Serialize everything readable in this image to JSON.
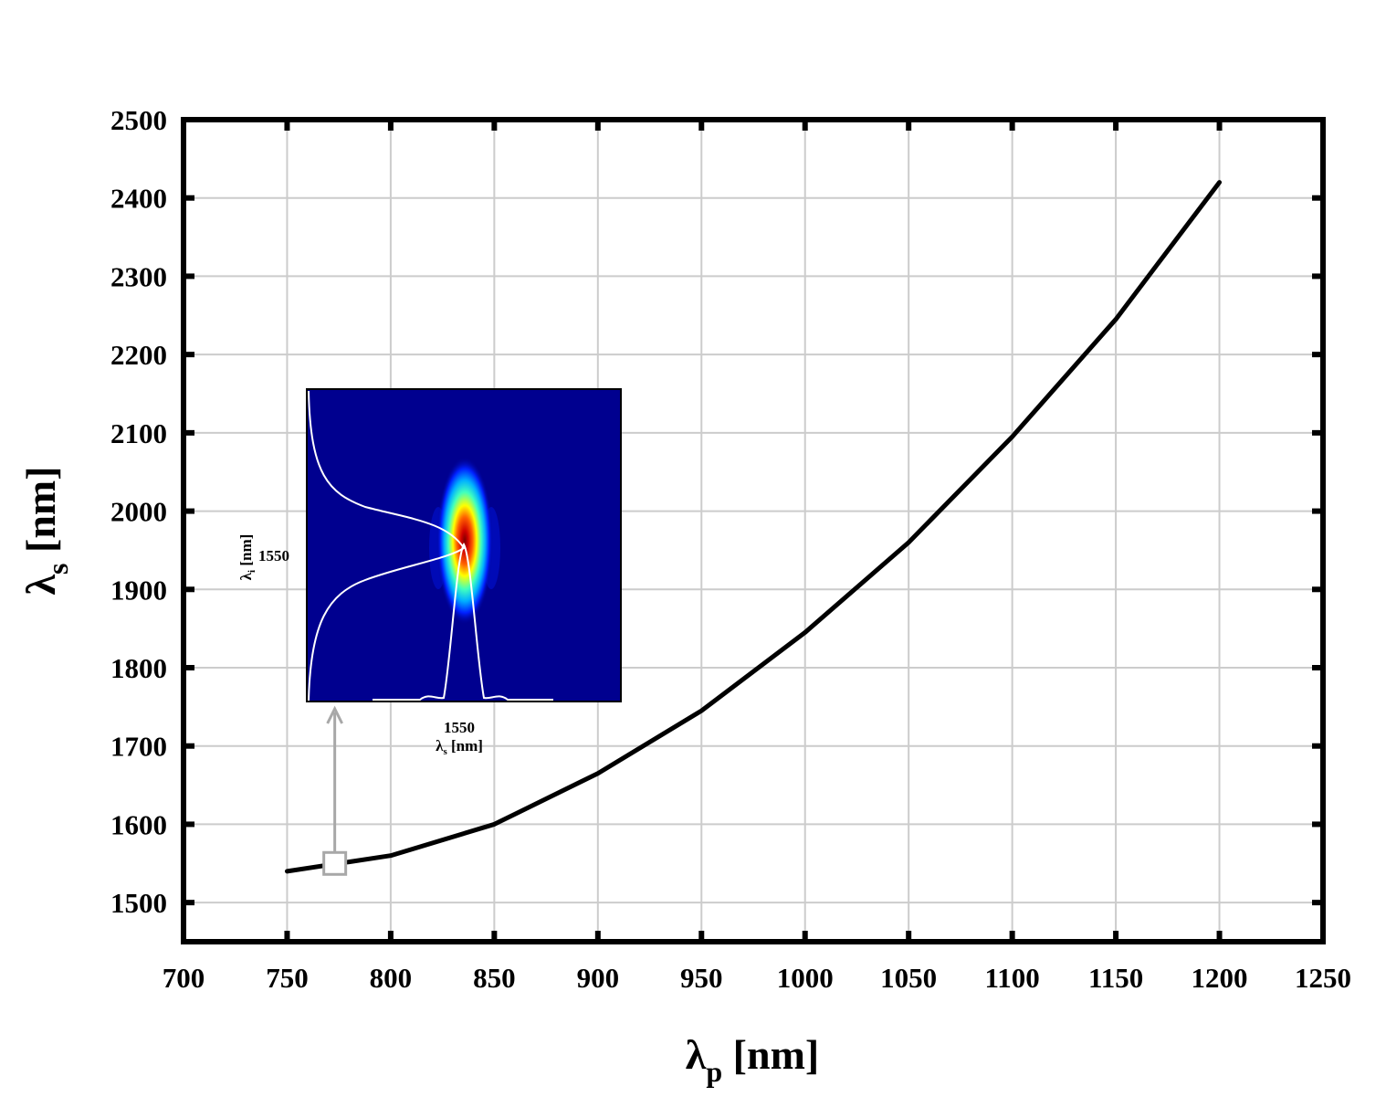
{
  "chart_data": {
    "type": "line",
    "title": "",
    "xlabel": {
      "symbol": "λ",
      "sub": "p",
      "unit": "[nm]"
    },
    "ylabel": {
      "symbol": "λ",
      "sub": "s",
      "unit": "[nm]"
    },
    "xlim": [
      700,
      1250
    ],
    "ylim": [
      1450,
      2500
    ],
    "xticks": [
      700,
      750,
      800,
      850,
      900,
      950,
      1000,
      1050,
      1100,
      1150,
      1200,
      1250
    ],
    "yticks": [
      1500,
      1600,
      1700,
      1800,
      1900,
      2000,
      2100,
      2200,
      2300,
      2400,
      2500
    ],
    "grid": true,
    "legend": "none",
    "series": [
      {
        "x": [
          750,
          800,
          850,
          900,
          950,
          1000,
          1050,
          1100,
          1150,
          1200
        ],
        "y": [
          1540,
          1560,
          1600,
          1665,
          1745,
          1845,
          1960,
          2095,
          2245,
          2420
        ],
        "color": "#000000"
      }
    ],
    "marker": {
      "x": 773,
      "y": 1550,
      "shape": "hollow-square",
      "color": "#a8a8a8"
    },
    "inset": {
      "type": "heatmap",
      "description_colors": [
        "#00008f",
        "#0000ff",
        "#00ffff",
        "#ffff00",
        "#ff0000",
        "#800000"
      ],
      "x_tick": "1550",
      "y_tick": "1550",
      "xlabel": {
        "symbol": "λ",
        "sub": "s",
        "unit": "[nm]"
      },
      "ylabel": {
        "symbol": "λ",
        "sub": "i",
        "unit": "[nm]"
      }
    }
  }
}
